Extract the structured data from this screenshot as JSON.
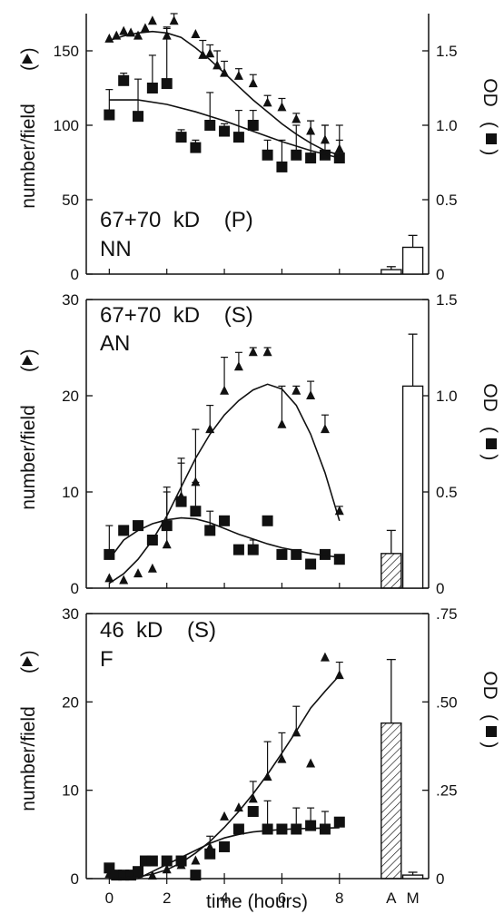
{
  "figure": {
    "xlabel": "time (hours)",
    "ylabel_left": "number/field",
    "ylabel_left_marker": "▲",
    "ylabel_right": "OD",
    "ylabel_right_marker": "■"
  },
  "chart_data": [
    {
      "type": "scatter",
      "label_line1": "67+70  kD    (P)",
      "label_line2": "NN",
      "xlabel": "",
      "ylabel": "number/field (▲)",
      "ylabel_right": "OD (■)",
      "xlim": [
        -0.8,
        11.1
      ],
      "ylim": [
        0,
        175
      ],
      "ylim_right": [
        0,
        1.75
      ],
      "yticks": [
        0,
        50,
        100,
        150
      ],
      "ytick_labels": [
        "0",
        "50",
        "100",
        "150"
      ],
      "yticks_right": [
        0,
        0.5,
        1.0,
        1.5
      ],
      "ytick_labels_right": [
        "0",
        "0.5",
        "1.0",
        "1.5"
      ],
      "series": [
        {
          "marker": "triangle",
          "x": [
            0,
            0.25,
            0.5,
            0.75,
            1.0,
            1.25,
            1.5,
            2.0,
            2.25,
            3.0,
            3.25,
            3.5,
            3.75,
            4.0,
            4.5,
            5.0,
            5.5,
            6.0,
            6.5,
            7.0,
            7.5,
            8.0
          ],
          "y": [
            158,
            160,
            163,
            162,
            160,
            165,
            170,
            160,
            170,
            161,
            147,
            148,
            140,
            135,
            133,
            128,
            115,
            112,
            104,
            96,
            90,
            84
          ],
          "err": [
            0,
            0,
            0,
            0,
            0,
            0,
            0,
            6,
            5,
            0,
            10,
            6,
            10,
            8,
            5,
            6,
            5,
            6,
            4,
            7,
            10,
            6
          ]
        },
        {
          "marker": "square",
          "x": [
            0,
            0.5,
            1.0,
            1.5,
            2.0,
            2.5,
            3.0,
            3.5,
            4.0,
            4.5,
            5.0,
            5.5,
            6.0,
            6.5,
            7.0,
            7.5,
            8.0
          ],
          "y": [
            107,
            130,
            106,
            125,
            128,
            92,
            85,
            100,
            96,
            92,
            100,
            80,
            72,
            80,
            78,
            80,
            78
          ],
          "err": [
            17,
            5,
            25,
            22,
            37,
            5,
            5,
            22,
            5,
            18,
            10,
            10,
            18,
            20,
            25,
            20,
            22
          ]
        },
        {
          "marker": "fit",
          "x": [
            0,
            0.5,
            1,
            1.5,
            2,
            2.5,
            3,
            3.5,
            4,
            4.5,
            5,
            5.5,
            6,
            6.5,
            7,
            7.5,
            8
          ],
          "y": [
            157,
            160,
            162,
            163,
            162,
            159,
            152,
            144,
            135,
            126,
            117,
            109,
            101,
            94,
            88,
            83,
            80
          ]
        },
        {
          "marker": "fit",
          "x": [
            0,
            1,
            2,
            3,
            4,
            5,
            6,
            7,
            8
          ],
          "y": [
            117,
            117,
            114,
            109,
            103,
            96,
            89,
            83,
            78
          ]
        }
      ],
      "bars": [
        {
          "x": 9.8,
          "value": 0.03,
          "err": 0.02,
          "hatch": false
        },
        {
          "x": 10.55,
          "value": 0.18,
          "err": 0.08,
          "hatch": false
        }
      ]
    },
    {
      "type": "scatter",
      "label_line1": "67+70  kD    (S)",
      "label_line2": "AN",
      "xlabel": "",
      "ylabel": "number/field (▲)",
      "ylabel_right": "OD (■)",
      "xlim": [
        -0.8,
        11.1
      ],
      "ylim": [
        0,
        30
      ],
      "ylim_right": [
        0,
        1.5
      ],
      "yticks": [
        0,
        10,
        20,
        30
      ],
      "ytick_labels": [
        "0",
        "10",
        "20",
        "30"
      ],
      "yticks_right": [
        0,
        0.5,
        1.0,
        1.5
      ],
      "ytick_labels_right": [
        "0",
        "0.5",
        "1.0",
        "1.5"
      ],
      "series": [
        {
          "marker": "triangle",
          "x": [
            0,
            0.5,
            1.0,
            1.5,
            2.0,
            2.5,
            3.0,
            3.5,
            4.0,
            4.5,
            5.0,
            5.5,
            6.0,
            6.5,
            7.0,
            7.5,
            8.0
          ],
          "y": [
            1.0,
            0.8,
            1.5,
            2.0,
            4.5,
            9.5,
            11.0,
            16.5,
            20.5,
            23.0,
            24.5,
            24.5,
            17.0,
            20.5,
            20.0,
            16.5,
            8.0
          ],
          "err": [
            0,
            0,
            0,
            0,
            5.5,
            4,
            5.5,
            2.5,
            3.5,
            1.5,
            0.5,
            0.5,
            4,
            0.5,
            1.5,
            1.5,
            0.5
          ]
        },
        {
          "marker": "square",
          "x": [
            0,
            0.5,
            1.0,
            1.5,
            2.0,
            2.5,
            3.0,
            3.5,
            4.0,
            4.5,
            5.0,
            5.5,
            6.0,
            6.5,
            7.0,
            7.5,
            8.0
          ],
          "y": [
            3.5,
            6.0,
            6.5,
            5.0,
            6.5,
            9.0,
            8.0,
            6.0,
            7.0,
            4.0,
            4.0,
            7.0,
            3.5,
            3.5,
            2.5,
            3.5,
            3.0
          ],
          "err": [
            3,
            0,
            0,
            0,
            4,
            4,
            3,
            2,
            0,
            0,
            1,
            0,
            0,
            0,
            0,
            0,
            0
          ]
        },
        {
          "marker": "fit",
          "x": [
            0,
            0.5,
            1,
            1.5,
            2,
            2.5,
            3,
            3.5,
            4,
            4.5,
            5,
            5.5,
            6,
            6.5,
            7,
            7.5,
            8
          ],
          "y": [
            0.5,
            1.5,
            3.0,
            5.0,
            7.5,
            10.5,
            13.5,
            16.0,
            18.0,
            19.5,
            20.6,
            21.2,
            20.7,
            19.0,
            16.0,
            12.0,
            7.0
          ]
        },
        {
          "marker": "fit",
          "x": [
            0,
            0.5,
            1,
            1.5,
            2,
            2.5,
            3,
            3.5,
            4,
            4.5,
            5,
            5.5,
            6,
            6.5,
            7,
            7.5,
            8
          ],
          "y": [
            3.0,
            5.0,
            6.0,
            6.7,
            7.1,
            7.3,
            7.2,
            6.8,
            6.2,
            5.6,
            5.1,
            4.6,
            4.2,
            3.9,
            3.6,
            3.4,
            3.2
          ]
        }
      ],
      "bars": [
        {
          "x": 9.8,
          "value": 0.18,
          "err": 0.12,
          "hatch": true
        },
        {
          "x": 10.55,
          "value": 1.05,
          "err": 0.27,
          "hatch": false
        }
      ]
    },
    {
      "type": "scatter",
      "label_line1": "46  kD    (S)",
      "label_line2": "F",
      "xlabel": "time (hours)",
      "ylabel": "number/field (▲)",
      "ylabel_right": "OD (■)",
      "xlim": [
        -0.8,
        11.1
      ],
      "ylim": [
        0,
        30
      ],
      "ylim_right": [
        0,
        0.75
      ],
      "yticks": [
        0,
        10,
        20,
        30
      ],
      "ytick_labels": [
        "0",
        "10",
        "20",
        "30"
      ],
      "yticks_right": [
        0,
        0.25,
        0.5,
        0.75
      ],
      "ytick_labels_right": [
        "0",
        ".25",
        ".50",
        ".75"
      ],
      "xticks": [
        0,
        2,
        4,
        6,
        8
      ],
      "xtick_labels": [
        "0",
        "2",
        "4",
        "6",
        "8"
      ],
      "categories": [
        "A",
        "M"
      ],
      "series": [
        {
          "marker": "triangle",
          "x": [
            0,
            0.5,
            1.0,
            1.5,
            2.0,
            2.5,
            3.0,
            3.5,
            4.0,
            4.5,
            5.0,
            5.5,
            6.0,
            6.5,
            7.0,
            7.5,
            8.0
          ],
          "y": [
            0.5,
            0.3,
            0.5,
            0.3,
            1.0,
            1.5,
            2.0,
            3.5,
            7.0,
            8.0,
            9.0,
            11.5,
            13.5,
            16.5,
            13.0,
            25.0,
            23.0
          ],
          "err": [
            0,
            0,
            0,
            0,
            0,
            0,
            0,
            0,
            0,
            0,
            2,
            4,
            3,
            3,
            0,
            0,
            1.5
          ]
        },
        {
          "marker": "square",
          "x": [
            0,
            0.25,
            0.5,
            0.75,
            1.0,
            1.25,
            1.5,
            2.0,
            2.5,
            3.0,
            3.5,
            4.0,
            4.5,
            5.0,
            5.5,
            6.0,
            6.5,
            7.0,
            7.5,
            8.0
          ],
          "y": [
            0.03,
            0.01,
            0.01,
            0.01,
            0.02,
            0.05,
            0.05,
            0.05,
            0.05,
            0.01,
            0.07,
            0.09,
            0.14,
            0.19,
            0.14,
            0.14,
            0.14,
            0.15,
            0.14,
            0.16
          ],
          "err": [
            0,
            0,
            0,
            0,
            0,
            0,
            0,
            0,
            0,
            0,
            0.05,
            0,
            0,
            0,
            0.08,
            0,
            0.06,
            0.05,
            0.05,
            0
          ]
        },
        {
          "marker": "fit",
          "x": [
            0,
            0.5,
            1,
            1.5,
            2,
            2.5,
            3,
            3.5,
            4,
            4.5,
            5,
            5.5,
            6,
            6.5,
            7,
            7.5,
            8
          ],
          "y": [
            0.0,
            0.1,
            0.2,
            0.5,
            1.0,
            1.8,
            2.9,
            4.2,
            5.8,
            7.6,
            9.6,
            11.8,
            14.2,
            16.7,
            19.3,
            21.2,
            23.0
          ]
        },
        {
          "marker": "fit",
          "x": [
            0,
            1,
            1.5,
            2,
            2.5,
            3,
            3.5,
            4,
            4.5,
            5,
            5.5,
            6,
            6.5,
            7,
            7.5,
            8
          ],
          "y": [
            0.0,
            0.0,
            0.02,
            0.04,
            0.06,
            0.08,
            0.1,
            0.115,
            0.125,
            0.132,
            0.136,
            0.139,
            0.141,
            0.142,
            0.143,
            0.144
          ]
        }
      ],
      "bars": [
        {
          "x": 9.8,
          "value": 0.44,
          "err": 0.18,
          "hatch": true
        },
        {
          "x": 10.55,
          "value": 0.01,
          "err": 0.008,
          "hatch": false
        }
      ]
    }
  ]
}
